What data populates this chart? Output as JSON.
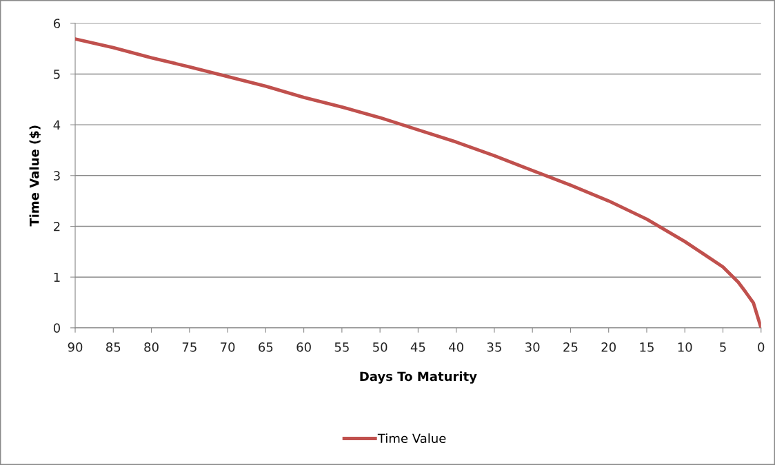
{
  "chart_data": {
    "type": "line",
    "xlabel": "Days To Maturity",
    "ylabel": "Time Value ($)",
    "x": [
      90,
      85,
      80,
      75,
      70,
      65,
      60,
      55,
      50,
      45,
      40,
      35,
      30,
      25,
      20,
      15,
      10,
      5,
      3,
      2,
      1,
      0
    ],
    "series": [
      {
        "name": "Time Value",
        "color": "#c0504d",
        "values": [
          5.69,
          5.52,
          5.32,
          5.14,
          4.95,
          4.76,
          4.54,
          4.35,
          4.14,
          3.9,
          3.66,
          3.39,
          3.1,
          2.81,
          2.5,
          2.14,
          1.7,
          1.2,
          0.9,
          0.7,
          0.49,
          0
        ]
      }
    ],
    "xlim": [
      90,
      0
    ],
    "xticks": [
      90,
      85,
      80,
      75,
      70,
      65,
      60,
      55,
      50,
      45,
      40,
      35,
      30,
      25,
      20,
      15,
      10,
      5,
      0
    ],
    "ylim": [
      0,
      6
    ],
    "yticks": [
      0,
      1,
      2,
      3,
      4,
      5,
      6
    ],
    "grid": "y",
    "legend": "bottom",
    "marker": "none",
    "line_style": "solid"
  }
}
